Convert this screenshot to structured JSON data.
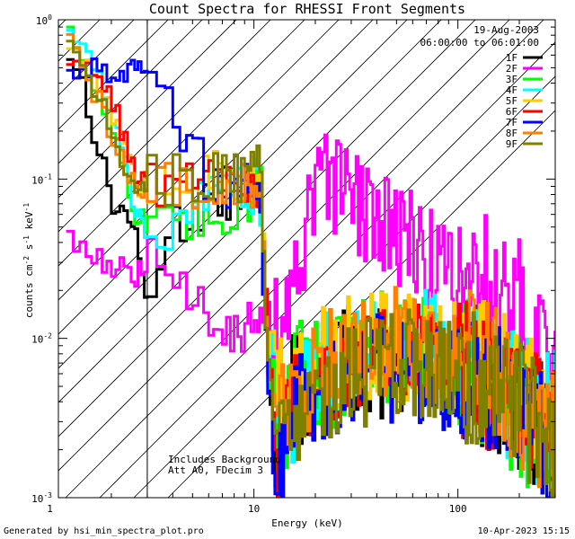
{
  "chart_data": {
    "type": "line",
    "title": "Count Spectra for RHESSI Front Segments",
    "xlabel": "Energy (keV)",
    "ylabel_parts": [
      "counts cm",
      "-2",
      " s",
      "-1",
      " keV",
      "-1"
    ],
    "xscale": "log",
    "yscale": "log",
    "xlim": [
      1.1,
      300
    ],
    "ylim": [
      0.001,
      1.0
    ],
    "x_ticks": [
      {
        "value": 1,
        "label": "1"
      },
      {
        "value": 10,
        "label": "10"
      },
      {
        "value": 100,
        "label": "100"
      }
    ],
    "y_ticks": [
      {
        "value": 1.0,
        "base": "10",
        "exp": "0"
      },
      {
        "value": 0.1,
        "base": "10",
        "exp": "-1"
      },
      {
        "value": 0.01,
        "base": "10",
        "exp": "-2"
      },
      {
        "value": 0.001,
        "base": "10",
        "exp": "-3"
      }
    ],
    "date": "19-Aug-2003",
    "time_range": "06:00:00 to 06:01:00",
    "hatched_region_max_kev": 3.0,
    "annotations": [
      "Includes Background",
      "Att A0, FDecim 3"
    ],
    "legend_position": "top-right",
    "series": [
      {
        "name": "1F",
        "color": "#000000",
        "anchors": [
          [
            1.2,
            0.62
          ],
          [
            1.4,
            0.4
          ],
          [
            1.6,
            0.2
          ],
          [
            2.0,
            0.07
          ],
          [
            2.5,
            0.055
          ],
          [
            2.9,
            0.018
          ],
          [
            3.2,
            0.033
          ],
          [
            4.0,
            0.05
          ],
          [
            5.0,
            0.07
          ],
          [
            7.0,
            0.08
          ],
          [
            9.0,
            0.09
          ],
          [
            10.5,
            0.08
          ],
          [
            11.5,
            0.012
          ],
          [
            12.5,
            0.0022
          ],
          [
            15,
            0.005
          ],
          [
            20,
            0.0045
          ],
          [
            30,
            0.0075
          ],
          [
            40,
            0.007
          ],
          [
            60,
            0.0072
          ],
          [
            100,
            0.0068
          ],
          [
            150,
            0.005
          ],
          [
            200,
            0.0035
          ],
          [
            280,
            0.0025
          ]
        ]
      },
      {
        "name": "2F",
        "color": "#ff00ff",
        "anchors": [
          [
            1.2,
            0.045
          ],
          [
            1.5,
            0.035
          ],
          [
            2.0,
            0.028
          ],
          [
            2.6,
            0.025
          ],
          [
            3.2,
            0.03
          ],
          [
            4.0,
            0.017
          ],
          [
            5.0,
            0.02
          ],
          [
            6.5,
            0.014
          ],
          [
            8.5,
            0.011
          ],
          [
            10.5,
            0.012
          ],
          [
            12.5,
            0.011
          ],
          [
            15,
            0.015
          ],
          [
            17,
            0.03
          ],
          [
            19,
            0.065
          ],
          [
            22,
            0.09
          ],
          [
            26,
            0.08
          ],
          [
            32,
            0.065
          ],
          [
            45,
            0.052
          ],
          [
            60,
            0.04
          ],
          [
            80,
            0.028
          ],
          [
            110,
            0.024
          ],
          [
            140,
            0.022
          ],
          [
            180,
            0.017
          ],
          [
            230,
            0.012
          ],
          [
            280,
            0.007
          ]
        ]
      },
      {
        "name": "3F",
        "color": "#00ff00",
        "anchors": [
          [
            1.2,
            0.75
          ],
          [
            1.5,
            0.45
          ],
          [
            2.0,
            0.22
          ],
          [
            2.6,
            0.06
          ],
          [
            3.2,
            0.045
          ],
          [
            4.0,
            0.05
          ],
          [
            5.0,
            0.05
          ],
          [
            7.0,
            0.06
          ],
          [
            9.0,
            0.07
          ],
          [
            10.5,
            0.12
          ],
          [
            11.5,
            0.01
          ],
          [
            13,
            0.0015
          ],
          [
            16,
            0.006
          ],
          [
            25,
            0.006
          ],
          [
            40,
            0.009
          ],
          [
            70,
            0.008
          ],
          [
            120,
            0.006
          ],
          [
            200,
            0.0035
          ],
          [
            280,
            0.002
          ]
        ]
      },
      {
        "name": "4F",
        "color": "#00ffff",
        "anchors": [
          [
            1.2,
            0.9
          ],
          [
            1.5,
            0.6
          ],
          [
            2.0,
            0.25
          ],
          [
            2.6,
            0.065
          ],
          [
            3.2,
            0.04
          ],
          [
            4.0,
            0.06
          ],
          [
            5.0,
            0.06
          ],
          [
            7.0,
            0.09
          ],
          [
            9.0,
            0.085
          ],
          [
            10.5,
            0.1
          ],
          [
            11.5,
            0.01
          ],
          [
            14,
            0.003
          ],
          [
            20,
            0.006
          ],
          [
            35,
            0.01
          ],
          [
            60,
            0.01
          ],
          [
            100,
            0.008
          ],
          [
            170,
            0.0048
          ],
          [
            280,
            0.003
          ]
        ]
      },
      {
        "name": "5F",
        "color": "#ffcc00",
        "anchors": [
          [
            1.2,
            0.6
          ],
          [
            1.5,
            0.5
          ],
          [
            2.0,
            0.25
          ],
          [
            2.6,
            0.09
          ],
          [
            3.2,
            0.1
          ],
          [
            4.0,
            0.095
          ],
          [
            5.0,
            0.085
          ],
          [
            7.0,
            0.12
          ],
          [
            9.0,
            0.1
          ],
          [
            10.5,
            0.12
          ],
          [
            11.5,
            0.012
          ],
          [
            14,
            0.004
          ],
          [
            20,
            0.007
          ],
          [
            35,
            0.009
          ],
          [
            60,
            0.009
          ],
          [
            100,
            0.008
          ],
          [
            170,
            0.005
          ],
          [
            280,
            0.0032
          ]
        ]
      },
      {
        "name": "6F",
        "color": "#ff0000",
        "anchors": [
          [
            1.2,
            0.6
          ],
          [
            1.5,
            0.45
          ],
          [
            2.0,
            0.3
          ],
          [
            2.6,
            0.1
          ],
          [
            3.2,
            0.09
          ],
          [
            4.0,
            0.12
          ],
          [
            5.0,
            0.13
          ],
          [
            7.0,
            0.09
          ],
          [
            9.0,
            0.1
          ],
          [
            10.5,
            0.1
          ],
          [
            11.5,
            0.01
          ],
          [
            13,
            0.0013
          ],
          [
            16,
            0.005
          ],
          [
            25,
            0.0065
          ],
          [
            40,
            0.009
          ],
          [
            70,
            0.008
          ],
          [
            120,
            0.006
          ],
          [
            200,
            0.0038
          ],
          [
            280,
            0.0024
          ]
        ]
      },
      {
        "name": "7F",
        "color": "#0000ff",
        "anchors": [
          [
            1.2,
            0.48
          ],
          [
            1.5,
            0.5
          ],
          [
            2.0,
            0.48
          ],
          [
            2.6,
            0.5
          ],
          [
            3.2,
            0.42
          ],
          [
            4.0,
            0.28
          ],
          [
            5.0,
            0.15
          ],
          [
            6.5,
            0.08
          ],
          [
            8.0,
            0.07
          ],
          [
            9.5,
            0.09
          ],
          [
            10.5,
            0.08
          ],
          [
            11.5,
            0.008
          ],
          [
            12.5,
            0.0012
          ],
          [
            15,
            0.004
          ],
          [
            25,
            0.005
          ],
          [
            40,
            0.0065
          ],
          [
            70,
            0.006
          ],
          [
            120,
            0.0055
          ],
          [
            200,
            0.0035
          ],
          [
            280,
            0.0022
          ]
        ]
      },
      {
        "name": "8F",
        "color": "#ff8000",
        "anchors": [
          [
            1.2,
            0.7
          ],
          [
            1.5,
            0.45
          ],
          [
            2.0,
            0.18
          ],
          [
            2.6,
            0.09
          ],
          [
            3.2,
            0.085
          ],
          [
            4.0,
            0.1
          ],
          [
            5.0,
            0.07
          ],
          [
            7.0,
            0.065
          ],
          [
            9.0,
            0.09
          ],
          [
            10.5,
            0.09
          ],
          [
            11.5,
            0.01
          ],
          [
            14,
            0.003
          ],
          [
            20,
            0.007
          ],
          [
            35,
            0.01
          ],
          [
            60,
            0.009
          ],
          [
            100,
            0.008
          ],
          [
            170,
            0.005
          ],
          [
            280,
            0.0026
          ]
        ]
      },
      {
        "name": "9F",
        "color": "#808000",
        "anchors": [
          [
            1.2,
            0.8
          ],
          [
            1.5,
            0.45
          ],
          [
            2.0,
            0.2
          ],
          [
            2.6,
            0.08
          ],
          [
            3.2,
            0.1
          ],
          [
            4.0,
            0.1
          ],
          [
            5.0,
            0.1
          ],
          [
            7.0,
            0.12
          ],
          [
            9.0,
            0.1
          ],
          [
            10.5,
            0.11
          ],
          [
            11.5,
            0.01
          ],
          [
            14,
            0.002
          ],
          [
            20,
            0.004
          ],
          [
            35,
            0.006
          ],
          [
            60,
            0.007
          ],
          [
            100,
            0.006
          ],
          [
            170,
            0.0045
          ],
          [
            280,
            0.0025
          ]
        ]
      }
    ]
  },
  "footer": {
    "left": "Generated by hsi_min_spectra_plot.pro",
    "right": "10-Apr-2023 15:15"
  }
}
